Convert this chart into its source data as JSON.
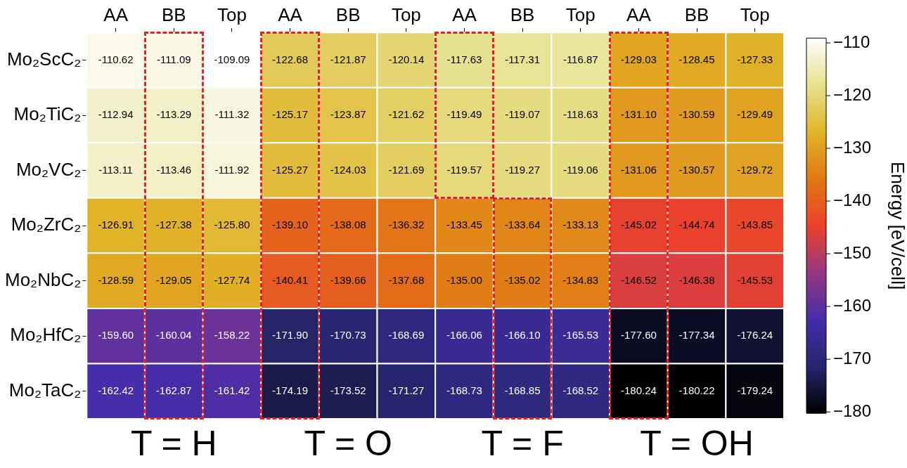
{
  "chart_data": {
    "type": "heatmap",
    "categories": [
      "AA",
      "BB",
      "Top",
      "AA",
      "BB",
      "Top",
      "AA",
      "BB",
      "Top",
      "AA",
      "BB",
      "Top"
    ],
    "y_categories": [
      "Mo₂ScC₂",
      "Mo₂TiC₂",
      "Mo₂VC₂",
      "Mo₂ZrC₂",
      "Mo₂NbC₂",
      "Mo₂HfC₂",
      "Mo₂TaC₂"
    ],
    "cells": [
      [
        -110.62,
        -111.09,
        -109.09,
        -122.68,
        -121.87,
        -120.14,
        -117.63,
        -117.31,
        -116.87,
        -129.03,
        -128.45,
        -127.33
      ],
      [
        -112.94,
        -113.29,
        -111.32,
        -125.17,
        -123.87,
        -121.62,
        -119.49,
        -119.07,
        -118.63,
        -131.1,
        -130.59,
        -129.49
      ],
      [
        -113.11,
        -113.46,
        -111.92,
        -125.27,
        -124.03,
        -121.69,
        -119.57,
        -119.27,
        -119.06,
        -131.06,
        -130.57,
        -129.72
      ],
      [
        -126.91,
        -127.38,
        -125.8,
        -139.1,
        -138.08,
        -136.32,
        -133.45,
        -133.64,
        -133.13,
        -145.02,
        -144.74,
        -143.85
      ],
      [
        -128.59,
        -129.05,
        -127.74,
        -140.41,
        -139.66,
        -137.68,
        -135.0,
        -135.02,
        -134.83,
        -146.52,
        -146.38,
        -145.53
      ],
      [
        -159.6,
        -160.04,
        -158.22,
        -171.9,
        -170.73,
        -168.69,
        -166.06,
        -166.1,
        -165.53,
        -177.6,
        -177.34,
        -176.24
      ],
      [
        -162.42,
        -162.87,
        -161.42,
        -174.19,
        -173.52,
        -171.27,
        -168.73,
        -168.85,
        -168.52,
        -180.24,
        -180.22,
        -179.24
      ]
    ],
    "cell_labels": [
      [
        "-110.62",
        "-111.09",
        "-109.09",
        "-122.68",
        "-121.87",
        "-120.14",
        "-117.63",
        "-117.31",
        "-116.87",
        "-129.03",
        "-128.45",
        "-127.33"
      ],
      [
        "-112.94",
        "-113.29",
        "-111.32",
        "-125.17",
        "-123.87",
        "-121.62",
        "-119.49",
        "-119.07",
        "-118.63",
        "-131.10",
        "-130.59",
        "-129.49"
      ],
      [
        "-113.11",
        "-113.46",
        "-111.92",
        "-125.27",
        "-124.03",
        "-121.69",
        "-119.57",
        "-119.27",
        "-119.06",
        "-131.06",
        "-130.57",
        "-129.72"
      ],
      [
        "-126.91",
        "-127.38",
        "-125.80",
        "-139.10",
        "-138.08",
        "-136.32",
        "-133.45",
        "-133.64",
        "-133.13",
        "-145.02",
        "-144.74",
        "-143.85"
      ],
      [
        "-128.59",
        "-129.05",
        "-127.74",
        "-140.41",
        "-139.66",
        "-137.68",
        "-135.00",
        "-135.02",
        "-134.83",
        "-146.52",
        "-146.38",
        "-145.53"
      ],
      [
        "-159.60",
        "-160.04",
        "-158.22",
        "-171.90",
        "-170.73",
        "-168.69",
        "-166.06",
        "-166.10",
        "-165.53",
        "-177.60",
        "-177.34",
        "-176.24"
      ],
      [
        "-162.42",
        "-162.87",
        "-161.42",
        "-174.19",
        "-173.52",
        "-171.27",
        "-168.73",
        "-168.85",
        "-168.52",
        "-180.24",
        "-180.22",
        "-179.24"
      ]
    ],
    "clabel": "Energy [eV/cell]",
    "clim": [
      -180.24,
      -109.09
    ],
    "cticks": [
      {
        "value": -110,
        "label": "−110"
      },
      {
        "value": -120,
        "label": "−120"
      },
      {
        "value": -130,
        "label": "−130"
      },
      {
        "value": -140,
        "label": "−140"
      },
      {
        "value": -150,
        "label": "−150"
      },
      {
        "value": -160,
        "label": "−160"
      },
      {
        "value": -170,
        "label": "−170"
      },
      {
        "value": -180,
        "label": "−180"
      }
    ],
    "annotations": [
      "T = H",
      "T = O",
      "T = F",
      "T = OH"
    ]
  }
}
